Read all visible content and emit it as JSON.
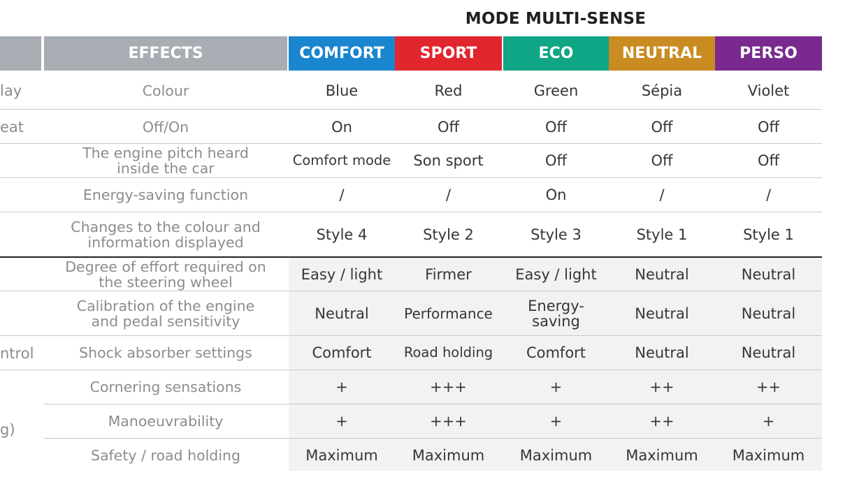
{
  "title": "MODE MULTI-SENSE",
  "header": {
    "effects": "EFFECTS",
    "modes": [
      {
        "label": "COMFORT",
        "color": "#1a86cf"
      },
      {
        "label": "SPORT",
        "color": "#e2262e"
      },
      {
        "label": "ECO",
        "color": "#0fa685"
      },
      {
        "label": "NEUTRAL",
        "color": "#c98c22"
      },
      {
        "label": "PERSO",
        "color": "#7a2a8e"
      }
    ]
  },
  "left_cut": {
    "r0": "lay",
    "r1": "eat",
    "r7": "ntrol",
    "r9": "g)"
  },
  "rows": [
    {
      "effect": "Colour",
      "values": [
        "Blue",
        "Red",
        "Green",
        "Sépia",
        "Violet"
      ]
    },
    {
      "effect": "Off/On",
      "values": [
        "On",
        "Off",
        "Off",
        "Off",
        "Off"
      ]
    },
    {
      "effect": "The engine pitch heard inside the car",
      "values": [
        "Comfort mode",
        "Son sport",
        "Off",
        "Off",
        "Off"
      ]
    },
    {
      "effect": "Energy-saving function",
      "values": [
        "/",
        "/",
        "On",
        "/",
        "/"
      ]
    },
    {
      "effect": "Changes to the colour and information displayed",
      "values": [
        "Style 4",
        "Style 2",
        "Style 3",
        "Style 1",
        "Style 1"
      ]
    },
    {
      "effect": "Degree of effort required on the steering wheel",
      "values": [
        "Easy / light",
        "Firmer",
        "Easy / light",
        "Neutral",
        "Neutral"
      ]
    },
    {
      "effect": "Calibration of the engine and pedal sensitivity",
      "values": [
        "Neutral",
        "Performance",
        "Energy-saving",
        "Neutral",
        "Neutral"
      ]
    },
    {
      "effect": "Shock absorber settings",
      "values": [
        "Comfort",
        "Road holding",
        "Comfort",
        "Neutral",
        "Neutral"
      ]
    },
    {
      "effect": "Cornering sensations",
      "values": [
        "+",
        "+++",
        "+",
        "++",
        "++"
      ]
    },
    {
      "effect": "Manoeuvrability",
      "values": [
        "+",
        "+++",
        "+",
        "++",
        "+"
      ]
    },
    {
      "effect": "Safety / road holding",
      "values": [
        "Maximum",
        "Maximum",
        "Maximum",
        "Maximum",
        "Maximum"
      ]
    }
  ]
}
